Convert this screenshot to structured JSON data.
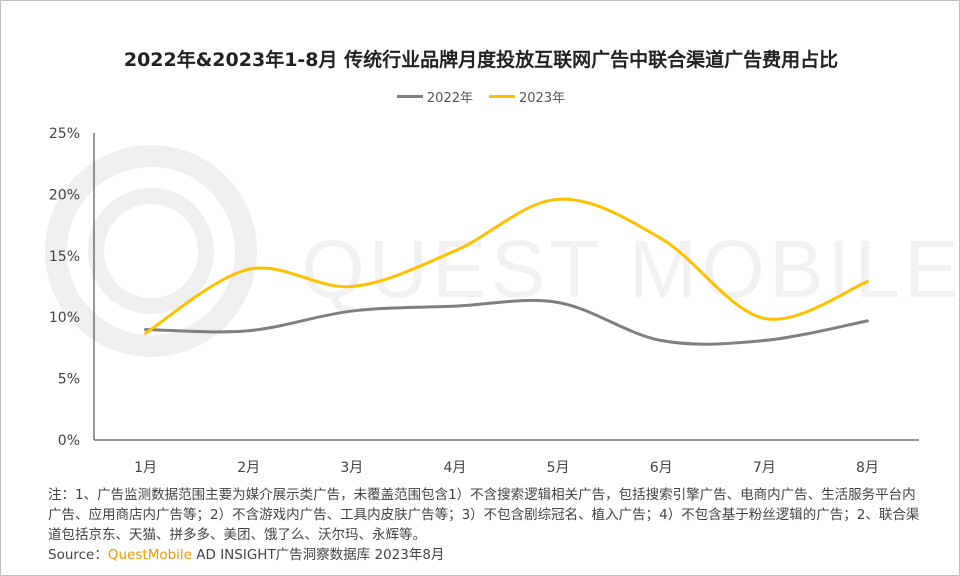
{
  "chart_data": {
    "type": "line",
    "title": "2022年&2023年1-8月 传统行业品牌月度投放互联网广告中联合渠道广告费用占比",
    "categories": [
      "1月",
      "2月",
      "3月",
      "4月",
      "5月",
      "6月",
      "7月",
      "8月"
    ],
    "series": [
      {
        "name": "2022年",
        "color": "#808080",
        "values": [
          9.0,
          8.9,
          10.5,
          10.9,
          11.2,
          8.1,
          8.1,
          9.7
        ]
      },
      {
        "name": "2023年",
        "color": "#ffc000",
        "values": [
          8.7,
          13.9,
          12.5,
          15.4,
          19.6,
          16.4,
          9.9,
          12.9
        ]
      }
    ],
    "ylim": [
      0,
      25
    ],
    "yticks": [
      "0%",
      "5%",
      "10%",
      "15%",
      "20%",
      "25%"
    ],
    "ytick_values": [
      0,
      5,
      10,
      15,
      20,
      25
    ],
    "smooth": true,
    "grid": false,
    "legend": "top-center"
  },
  "watermark": "QUEST MOBILE",
  "notes": "注：1、广告监测数据范围主要为媒介展示类广告，未覆盖范围包含1）不含搜索逻辑相关广告，包括搜索引擎广告、电商内广告、生活服务平台内广告、应用商店内广告等；2）不含游戏内广告、工具内皮肤广告等；3）不包含剧综冠名、植入广告；4）不包含基于粉丝逻辑的广告；2、联合渠道包括京东、天猫、拼多多、美团、饿了么、沃尔玛、永辉等。",
  "source": {
    "label": "Source：",
    "brand": "QuestMobile",
    "text": " AD INSIGHT广告洞察数据库 2023年8月"
  }
}
